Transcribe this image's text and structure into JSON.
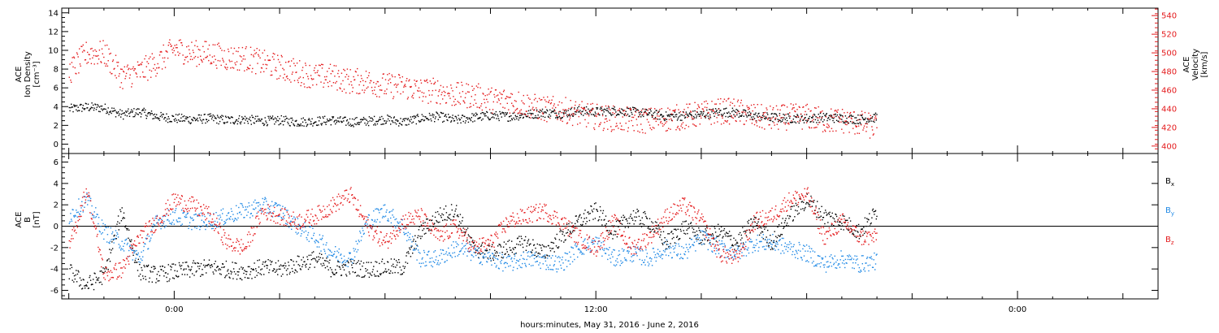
{
  "chart_data": [
    {
      "type": "scatter",
      "panel": "top",
      "ylabel": [
        "ACE",
        "Ion Density",
        "[cm⁻³]"
      ],
      "ylabel_right": [
        "ACE",
        "Velocity",
        "[km/s]"
      ],
      "ylim": [
        -1,
        14.5
      ],
      "yticks": [
        0,
        2,
        4,
        6,
        8,
        10,
        12,
        14
      ],
      "ylim_right": [
        392,
        548
      ],
      "yticks_right": [
        400,
        420,
        440,
        460,
        480,
        500,
        520,
        540
      ],
      "x_time_labels": [
        "0:00",
        "12:00",
        "0:00"
      ],
      "x_time_hours": [
        0,
        12,
        24
      ],
      "xlim_hours": [
        -3.2,
        28
      ],
      "series": [
        {
          "color": "#000000",
          "axis": "left",
          "x": [
            -3.0,
            -2.5,
            -2.0,
            -1.5,
            -1.0,
            -0.5,
            0.0,
            0.5,
            1.0,
            1.5,
            2.0,
            2.5,
            3.0,
            3.5,
            4.0,
            4.5,
            5.0,
            5.5,
            6.0,
            6.5,
            7.0,
            7.5,
            8.0,
            8.5,
            9.0,
            9.5,
            10.0,
            10.5,
            11.0,
            11.5,
            12.0,
            12.5,
            13.0,
            13.5,
            14.0,
            14.5,
            15.0,
            15.5,
            16.0,
            16.5,
            17.0,
            17.5,
            18.0,
            18.5,
            19.0,
            19.5,
            20.0
          ],
          "values": [
            3.8,
            4.0,
            3.9,
            3.2,
            3.5,
            3.0,
            2.8,
            2.7,
            2.8,
            2.6,
            2.7,
            2.5,
            2.6,
            2.4,
            2.5,
            2.6,
            2.4,
            2.5,
            2.7,
            2.4,
            2.8,
            3.0,
            2.6,
            2.9,
            3.1,
            3.0,
            3.2,
            3.4,
            3.3,
            3.6,
            3.5,
            3.6,
            3.5,
            3.3,
            3.0,
            3.1,
            3.2,
            3.5,
            3.4,
            3.0,
            2.9,
            2.8,
            2.8,
            2.9,
            2.8,
            2.7,
            2.9
          ]
        },
        {
          "color": "#e41a1c",
          "axis": "right",
          "x": [
            -3.0,
            -2.5,
            -2.0,
            -1.5,
            -1.0,
            -0.5,
            0.0,
            0.5,
            1.0,
            1.5,
            2.0,
            2.5,
            3.0,
            3.5,
            4.0,
            4.5,
            5.0,
            5.5,
            6.0,
            6.5,
            7.0,
            7.5,
            8.0,
            8.5,
            9.0,
            9.5,
            10.0,
            10.5,
            11.0,
            11.5,
            12.0,
            12.5,
            13.0,
            13.5,
            14.0,
            14.5,
            15.0,
            15.5,
            16.0,
            16.5,
            17.0,
            17.5,
            18.0,
            18.5,
            19.0,
            19.5,
            20.0
          ],
          "values": [
            480,
            500,
            500,
            475,
            480,
            490,
            505,
            500,
            500,
            495,
            495,
            490,
            485,
            480,
            475,
            475,
            470,
            470,
            465,
            465,
            460,
            460,
            455,
            455,
            450,
            450,
            445,
            440,
            440,
            435,
            432,
            430,
            428,
            428,
            430,
            432,
            435,
            438,
            438,
            432,
            430,
            432,
            432,
            428,
            428,
            425,
            420
          ]
        }
      ]
    },
    {
      "type": "scatter",
      "panel": "bottom",
      "ylabel": [
        "ACE",
        "B",
        "[nT]"
      ],
      "ylim": [
        -6.8,
        6.8
      ],
      "yticks": [
        -6,
        -4,
        -2,
        0,
        2,
        4,
        6
      ],
      "zero_line": true,
      "x_time_labels": [
        "0:00",
        "12:00",
        "0:00"
      ],
      "x_time_hours": [
        0,
        12,
        24
      ],
      "xlim_hours": [
        -3.2,
        28
      ],
      "xlabel": "hours:minutes, May 31, 2016 - June  2, 2016",
      "series": [
        {
          "name": "Bx",
          "color": "#000000",
          "x": [
            -3.0,
            -2.5,
            -2.0,
            -1.5,
            -1.0,
            -0.5,
            0.0,
            0.5,
            1.0,
            1.5,
            2.0,
            2.5,
            3.0,
            3.5,
            4.0,
            4.5,
            5.0,
            5.5,
            6.0,
            6.5,
            7.0,
            7.5,
            8.0,
            8.5,
            9.0,
            9.5,
            10.0,
            10.5,
            11.0,
            11.5,
            12.0,
            12.5,
            13.0,
            13.5,
            14.0,
            14.5,
            15.0,
            15.5,
            16.0,
            16.5,
            17.0,
            17.5,
            18.0,
            18.5,
            19.0,
            19.5,
            20.0
          ],
          "values": [
            -4.2,
            -5.5,
            -4.5,
            1.5,
            -4.2,
            -4.5,
            -4.2,
            -4.0,
            -3.8,
            -4.0,
            -4.2,
            -3.8,
            -4.0,
            -3.5,
            -3.0,
            -4.0,
            -3.8,
            -4.0,
            -3.8,
            -3.8,
            -0.5,
            1.0,
            1.5,
            -2.0,
            -2.5,
            -2.0,
            -1.5,
            -2.5,
            -1.0,
            0.5,
            1.5,
            -0.5,
            1.0,
            0.5,
            -1.5,
            0.0,
            -1.0,
            -0.5,
            -1.5,
            0.5,
            -1.5,
            1.0,
            2.5,
            1.0,
            0.5,
            -0.5,
            1.5
          ]
        },
        {
          "name": "By",
          "color": "#1e88e5",
          "x": [
            -3.0,
            -2.5,
            -2.0,
            -1.5,
            -1.0,
            -0.5,
            0.0,
            0.5,
            1.0,
            1.5,
            2.0,
            2.5,
            3.0,
            3.5,
            4.0,
            4.5,
            5.0,
            5.5,
            6.0,
            6.5,
            7.0,
            7.5,
            8.0,
            8.5,
            9.0,
            9.5,
            10.0,
            10.5,
            11.0,
            11.5,
            12.0,
            12.5,
            13.0,
            13.5,
            14.0,
            14.5,
            15.0,
            15.5,
            16.0,
            16.5,
            17.0,
            17.5,
            18.0,
            18.5,
            19.0,
            19.5,
            20.0
          ],
          "values": [
            1.0,
            2.5,
            -0.5,
            -1.5,
            -3.0,
            0.5,
            1.0,
            0.5,
            0.5,
            1.0,
            1.5,
            2.0,
            1.5,
            0.0,
            -1.0,
            -2.5,
            -3.0,
            0.5,
            1.5,
            0.0,
            -3.0,
            -3.0,
            -2.0,
            -2.5,
            -3.0,
            -3.5,
            -3.0,
            -3.2,
            -3.5,
            -2.0,
            -1.5,
            -3.0,
            -2.5,
            -3.0,
            -2.0,
            -2.5,
            -1.0,
            -2.0,
            -2.5,
            -1.5,
            -1.5,
            -2.0,
            -2.5,
            -3.5,
            -3.0,
            -3.5,
            -3.2
          ]
        },
        {
          "name": "Bz",
          "color": "#e41a1c",
          "x": [
            -3.0,
            -2.5,
            -2.0,
            -1.5,
            -1.0,
            -0.5,
            0.0,
            0.5,
            1.0,
            1.5,
            2.0,
            2.5,
            3.0,
            3.5,
            4.0,
            4.5,
            5.0,
            5.5,
            6.0,
            6.5,
            7.0,
            7.5,
            8.0,
            8.5,
            9.0,
            9.5,
            10.0,
            10.5,
            11.0,
            11.5,
            12.0,
            12.5,
            13.0,
            13.5,
            14.0,
            14.5,
            15.0,
            15.5,
            16.0,
            16.5,
            17.0,
            17.5,
            18.0,
            18.5,
            19.0,
            19.5,
            20.0
          ],
          "values": [
            -2.0,
            3.5,
            -4.5,
            -4.0,
            -1.0,
            0.5,
            2.5,
            2.0,
            1.0,
            -1.5,
            -2.0,
            1.5,
            1.0,
            0.5,
            1.0,
            2.0,
            3.0,
            0.0,
            -1.5,
            0.5,
            1.0,
            -1.0,
            0.0,
            -2.0,
            -1.5,
            0.5,
            1.0,
            1.5,
            0.5,
            -1.0,
            -2.0,
            0.5,
            -2.0,
            -1.0,
            1.0,
            2.0,
            0.5,
            -2.5,
            -3.0,
            0.5,
            1.0,
            2.5,
            3.0,
            -1.0,
            0.5,
            -1.0,
            -1.0
          ]
        }
      ]
    }
  ]
}
